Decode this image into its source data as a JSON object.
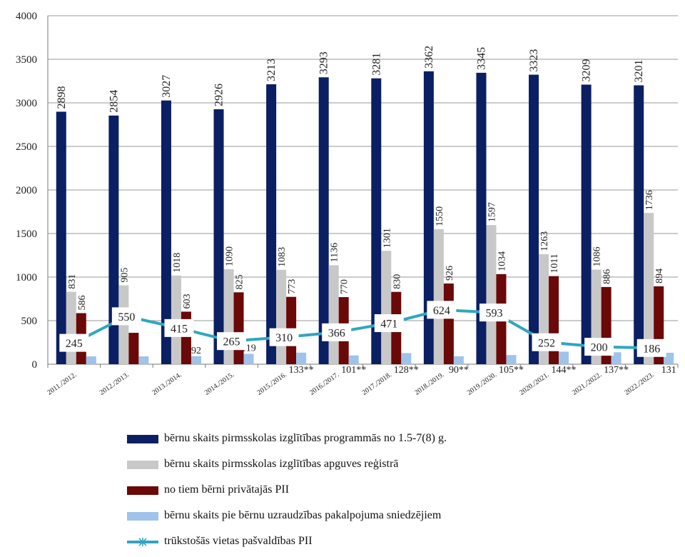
{
  "chart_data": {
    "type": "bar",
    "categories": [
      "2011./2012.",
      "2012./2013.",
      "2013./2014.",
      "2014./2015.",
      "2015./2016.",
      "2016./2017.",
      "2017./2018.",
      "2018./2019.",
      "2019./2020.",
      "2020./2021.",
      "2021./2022.",
      "2022./2023."
    ],
    "ylim": [
      0,
      4000
    ],
    "yticks": [
      "0",
      "500",
      "1000",
      "1500",
      "2000",
      "2500",
      "3000",
      "3500",
      "4000"
    ],
    "grid": true,
    "legend_position": "bottom",
    "series": [
      {
        "name": "bērnu skaits pirmsskolas izglītības programmās no 1.5-7(8) g.",
        "kind": "bar",
        "color": "#0b1f63",
        "values": [
          2898,
          2854,
          3027,
          2926,
          3213,
          3293,
          3281,
          3362,
          3345,
          3323,
          3209,
          3201
        ],
        "labels": [
          "2898",
          "2854",
          "3027",
          "2926",
          "3213",
          "3293",
          "3281",
          "3362",
          "3345",
          "3323",
          "3209",
          "3201"
        ]
      },
      {
        "name": "bērnu skaits pirmsskolas izglītības apguves reģistrā",
        "kind": "bar",
        "color": "#c8c8c8",
        "values": [
          831,
          905,
          1018,
          1090,
          1083,
          1136,
          1301,
          1550,
          1597,
          1263,
          1086,
          1736
        ],
        "labels": [
          "831",
          "905",
          "1018",
          "1090",
          "1083",
          "1136",
          "1301",
          "1550",
          "1597",
          "1263",
          "1086",
          "1736"
        ]
      },
      {
        "name": "no tiem bērni privātajās PII",
        "kind": "bar",
        "color": "#6b0808",
        "values": [
          586,
          360,
          603,
          825,
          773,
          770,
          830,
          926,
          1034,
          1011,
          886,
          894
        ],
        "labels": [
          "586",
          "",
          "603",
          "825",
          "773",
          "770",
          "830",
          "926",
          "1034",
          "1011",
          "886",
          "894"
        ]
      },
      {
        "name": "bērnu skaits pie bērnu uzraudzības pakalpojuma sniedzējiem",
        "kind": "bar",
        "color": "#9fc3ea",
        "values": [
          90,
          90,
          92,
          119,
          133,
          101,
          128,
          90,
          105,
          144,
          137,
          131
        ],
        "labels": [
          "",
          "",
          "92",
          "119",
          "133**",
          "101**",
          "128**",
          "90**",
          "105**",
          "144**",
          "137**",
          "131"
        ]
      },
      {
        "name": "trūkstošās vietas pašvaldības PII",
        "kind": "line",
        "color": "#31a6c0",
        "values": [
          245,
          550,
          415,
          265,
          310,
          366,
          471,
          624,
          593,
          252,
          200,
          186
        ],
        "labels": [
          "245",
          "550",
          "415",
          "265",
          "310",
          "366",
          "471",
          "624",
          "593",
          "252",
          "200",
          "186"
        ]
      }
    ]
  }
}
